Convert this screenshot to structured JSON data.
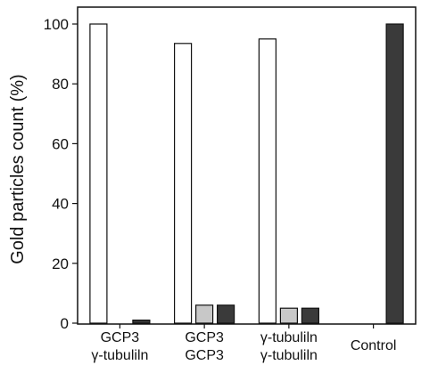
{
  "chart_data": {
    "type": "bar",
    "ylabel": "Gold particles count (%)",
    "ylim": [
      0,
      100
    ],
    "yticks": [
      0,
      20,
      40,
      60,
      80,
      100
    ],
    "categories": [
      {
        "line1": "GCP3",
        "line2": "γ-tubuliln"
      },
      {
        "line1": "GCP3",
        "line2": "GCP3"
      },
      {
        "line1": "γ-tubuliln",
        "line2": "γ-tubuliln"
      },
      {
        "line1": "Control",
        "line2": ""
      }
    ],
    "series": [
      {
        "values": [
          100,
          93.5,
          95,
          0
        ],
        "color": "#ffffff"
      },
      {
        "values": [
          0,
          6,
          5,
          0
        ],
        "color": "#c8c8c8"
      },
      {
        "values": [
          1,
          6,
          5,
          100
        ],
        "color": "#3a3a3a"
      }
    ],
    "grid": false,
    "legend": "none"
  }
}
